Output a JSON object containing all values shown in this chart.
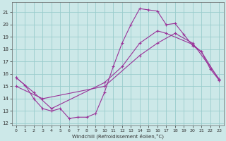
{
  "background_color": "#cce8e8",
  "grid_color": "#99cccc",
  "line_color": "#993399",
  "xlabel": "Windchill (Refroidissement éolien,°C)",
  "xlim": [
    -0.5,
    23.5
  ],
  "ylim": [
    11.8,
    21.8
  ],
  "yticks": [
    12,
    13,
    14,
    15,
    16,
    17,
    18,
    19,
    20,
    21
  ],
  "xticks": [
    0,
    1,
    2,
    3,
    4,
    5,
    6,
    7,
    8,
    9,
    10,
    11,
    12,
    13,
    14,
    15,
    16,
    17,
    18,
    19,
    20,
    21,
    22,
    23
  ],
  "s1_x": [
    0,
    1,
    2,
    3,
    4,
    5,
    6,
    7,
    8,
    9,
    10,
    11,
    12,
    13,
    14,
    15,
    16,
    17,
    18,
    19,
    20,
    21,
    22,
    23
  ],
  "s1_y": [
    15.7,
    15.1,
    14.0,
    13.2,
    13.0,
    13.2,
    12.4,
    12.5,
    12.5,
    12.8,
    14.5,
    16.6,
    18.5,
    20.0,
    21.3,
    21.2,
    21.1,
    20.0,
    20.1,
    19.2,
    18.3,
    17.8,
    16.4,
    15.5
  ],
  "s2_x": [
    0,
    2,
    4,
    10,
    12,
    14,
    16,
    17,
    20,
    21,
    23
  ],
  "s2_y": [
    15.7,
    14.5,
    13.2,
    15.3,
    16.6,
    18.5,
    19.5,
    19.3,
    18.4,
    17.8,
    15.5
  ],
  "s3_x": [
    0,
    3,
    10,
    14,
    16,
    18,
    20,
    23
  ],
  "s3_y": [
    15.0,
    14.0,
    15.0,
    17.5,
    18.5,
    19.3,
    18.5,
    15.6
  ]
}
